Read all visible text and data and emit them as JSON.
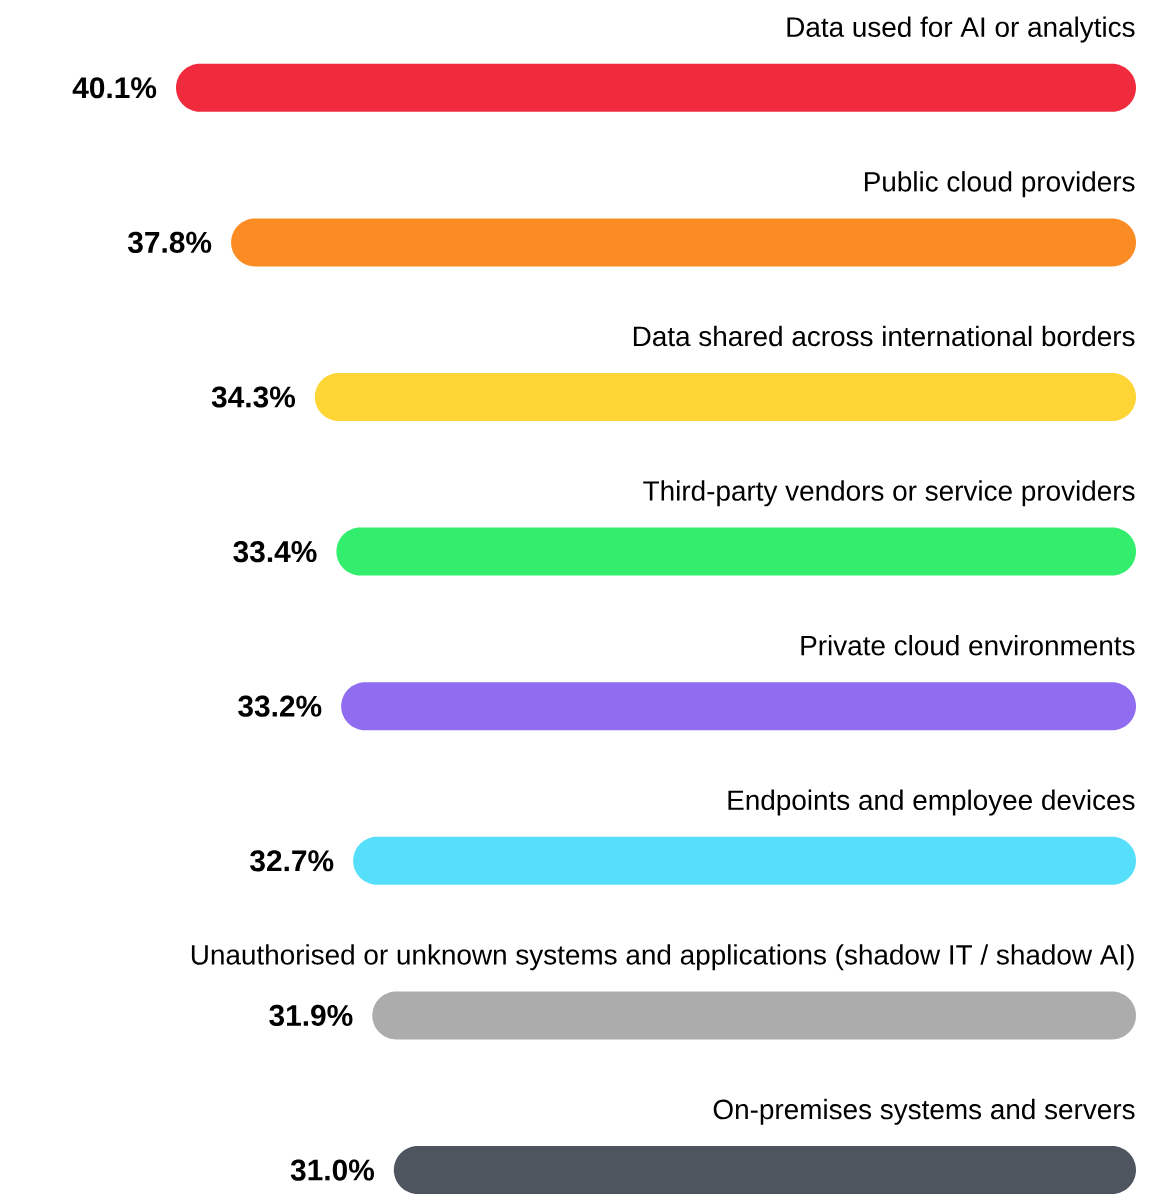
{
  "chart_data": {
    "type": "bar",
    "orientation": "horizontal",
    "categories": [
      "Data used for AI or analytics",
      "Public cloud providers",
      "Data shared across international borders",
      "Third-party vendors or service providers",
      "Private cloud environments",
      "Endpoints and employee devices",
      "Unauthorised or unknown systems and applications (shadow IT / shadow AI)",
      "On-premises systems and servers"
    ],
    "values": [
      40.1,
      37.8,
      34.3,
      33.4,
      33.2,
      32.7,
      31.9,
      31.0
    ],
    "value_labels": [
      "40.1%",
      "37.8%",
      "34.3%",
      "33.4%",
      "33.2%",
      "32.7%",
      "31.9%",
      "31.0%"
    ],
    "colors": [
      "#ef2b3d",
      "#fb8c23",
      "#fdd535",
      "#33ee6c",
      "#8f6cf0",
      "#55dffb",
      "#acacac",
      "#4f555e"
    ]
  }
}
